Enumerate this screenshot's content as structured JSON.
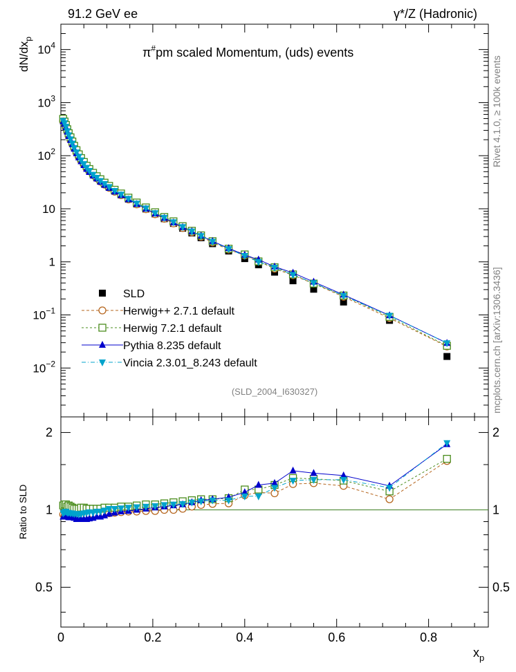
{
  "header": {
    "left": "91.2 GeV ee",
    "right": "γ*/Z (Hadronic)"
  },
  "side_labels": {
    "rivet": "Rivet 4.1.0, ≥ 100k events",
    "mcplots": "mcplots.cern.ch [arXiv:1306.3436]"
  },
  "chart_data": {
    "type": "scatter",
    "title": "π#pm scaled Momentum, (uds) events",
    "analysis": "(SLD_2004_I630327)",
    "xlabel": "x",
    "xlabel_sub": "p",
    "ylabel": "dN/dx",
    "ylabel_sub": "p",
    "ratio_ylabel": "Ratio to SLD",
    "xlim": [
      0,
      0.93
    ],
    "ylim": [
      0.0012,
      30000
    ],
    "ratio_ylim": [
      0.35,
      2.3
    ],
    "yscale": "log",
    "x_ticks": [
      "0",
      "0.2",
      "0.4",
      "0.6",
      "0.8"
    ],
    "y_ticks": [
      "10^-2",
      "10^-1",
      "1",
      "10",
      "10^2",
      "10^3",
      "10^4"
    ],
    "ratio_ticks": [
      "0.5",
      "1",
      "2"
    ],
    "legend_placement": "lower-left",
    "x": [
      0.005,
      0.008,
      0.011,
      0.014,
      0.017,
      0.021,
      0.025,
      0.029,
      0.034,
      0.039,
      0.044,
      0.05,
      0.056,
      0.062,
      0.07,
      0.078,
      0.086,
      0.095,
      0.105,
      0.117,
      0.131,
      0.147,
      0.165,
      0.185,
      0.205,
      0.225,
      0.245,
      0.265,
      0.285,
      0.305,
      0.33,
      0.365,
      0.4,
      0.43,
      0.465,
      0.505,
      0.55,
      0.615,
      0.715,
      0.84
    ],
    "series": [
      {
        "name": "SLD",
        "color": "#000000",
        "values": [
          470,
          420,
          360,
          300,
          250,
          210,
          175,
          145,
          120,
          100,
          85,
          72,
          61,
          53,
          45,
          39,
          34,
          29.5,
          25.5,
          21.5,
          18.3,
          15.2,
          12.3,
          9.9,
          8.0,
          6.5,
          5.3,
          4.3,
          3.5,
          2.85,
          2.2,
          1.6,
          1.15,
          0.88,
          0.64,
          0.44,
          0.305,
          0.175,
          0.079,
          0.0165
        ]
      },
      {
        "name": "Herwig++ 2.7.1 default",
        "color": "#b5651d",
        "values": [
          450,
          400,
          340,
          285,
          238,
          200,
          167,
          139,
          115,
          96,
          81,
          69,
          58,
          51,
          43,
          37.5,
          32.5,
          28.5,
          24.8,
          21.0,
          18.0,
          15.0,
          12.1,
          9.8,
          7.9,
          6.5,
          5.3,
          4.35,
          3.6,
          2.98,
          2.32,
          1.7,
          1.32,
          1.03,
          0.74,
          0.56,
          0.39,
          0.22,
          0.087,
          0.0255
        ],
        "ratio": [
          0.96,
          0.95,
          0.95,
          0.95,
          0.95,
          0.95,
          0.955,
          0.96,
          0.96,
          0.96,
          0.955,
          0.955,
          0.955,
          0.96,
          0.96,
          0.96,
          0.955,
          0.965,
          0.97,
          0.975,
          0.98,
          0.985,
          0.985,
          0.99,
          0.99,
          1.0,
          1.0,
          1.01,
          1.03,
          1.045,
          1.055,
          1.06,
          1.14,
          1.17,
          1.16,
          1.26,
          1.27,
          1.24,
          1.1,
          1.55
        ]
      },
      {
        "name": "Herwig 7.2.1 default",
        "color": "#4a8c1c",
        "values": [
          495,
          440,
          378,
          315,
          265,
          222,
          185,
          153,
          127,
          106,
          90,
          76,
          64.5,
          56,
          47.5,
          41,
          36,
          31,
          27,
          22.8,
          19.4,
          16.2,
          13.1,
          10.6,
          8.6,
          7.0,
          5.8,
          4.7,
          3.85,
          3.15,
          2.45,
          1.77,
          1.38,
          1.02,
          0.79,
          0.58,
          0.39,
          0.232,
          0.092,
          0.0262
        ],
        "ratio": [
          1.04,
          1.05,
          1.05,
          1.03,
          1.04,
          1.03,
          1.02,
          1.01,
          1.01,
          1.01,
          1.02,
          1.02,
          1.01,
          1.01,
          1.01,
          1.01,
          1.01,
          1.02,
          1.02,
          1.02,
          1.03,
          1.03,
          1.04,
          1.05,
          1.05,
          1.06,
          1.07,
          1.08,
          1.09,
          1.1,
          1.1,
          1.11,
          1.2,
          1.2,
          1.25,
          1.33,
          1.32,
          1.3,
          1.18,
          1.58
        ]
      },
      {
        "name": "Pythia 8.235 default",
        "color": "#0000cc",
        "values": [
          440,
          395,
          340,
          282,
          233,
          196,
          163,
          134,
          110,
          92,
          78,
          66,
          56,
          49,
          42,
          37,
          32,
          28,
          24.6,
          21,
          18,
          15,
          12.3,
          10.0,
          8.1,
          6.7,
          5.5,
          4.5,
          3.75,
          3.1,
          2.45,
          1.8,
          1.35,
          1.1,
          0.81,
          0.62,
          0.42,
          0.24,
          0.098,
          0.0295
        ],
        "ratio": [
          0.94,
          0.94,
          0.945,
          0.94,
          0.935,
          0.935,
          0.935,
          0.93,
          0.92,
          0.92,
          0.92,
          0.92,
          0.92,
          0.925,
          0.93,
          0.94,
          0.94,
          0.95,
          0.965,
          0.975,
          0.985,
          0.99,
          1.0,
          1.01,
          1.02,
          1.03,
          1.04,
          1.05,
          1.07,
          1.09,
          1.1,
          1.12,
          1.17,
          1.25,
          1.27,
          1.42,
          1.39,
          1.36,
          1.24,
          1.8
        ]
      },
      {
        "name": "Vincia 2.3.01_8.243 default",
        "color": "#00a3cc",
        "values": [
          455,
          412,
          355,
          292,
          244,
          204,
          170,
          140,
          116,
          96,
          82,
          70,
          59.5,
          52,
          44,
          38.5,
          33.5,
          29.5,
          25.8,
          21.8,
          18.6,
          15.5,
          12.6,
          10.2,
          8.3,
          6.8,
          5.6,
          4.55,
          3.75,
          3.08,
          2.4,
          1.75,
          1.3,
          1.0,
          0.78,
          0.57,
          0.4,
          0.23,
          0.097,
          0.0295
        ],
        "ratio": [
          0.97,
          0.98,
          0.985,
          0.975,
          0.975,
          0.97,
          0.97,
          0.965,
          0.965,
          0.96,
          0.965,
          0.97,
          0.975,
          0.98,
          0.975,
          0.985,
          0.985,
          0.995,
          1.01,
          1.01,
          1.015,
          1.02,
          1.025,
          1.03,
          1.035,
          1.045,
          1.05,
          1.055,
          1.07,
          1.08,
          1.09,
          1.09,
          1.13,
          1.13,
          1.22,
          1.3,
          1.31,
          1.31,
          1.22,
          1.82
        ]
      }
    ]
  }
}
